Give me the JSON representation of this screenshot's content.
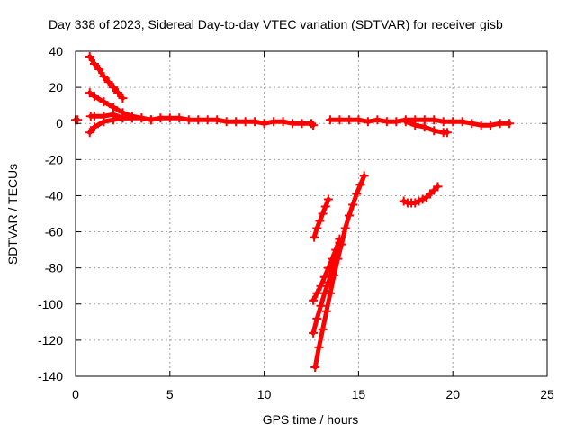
{
  "chart_data": {
    "type": "scatter",
    "title": "Day 338 of 2023, Sidereal Day-to-day VTEC variation (SDTVAR) for receiver gisb",
    "xlabel": "GPS time / hours",
    "ylabel": "SDTVAR / TECUs",
    "xlim": [
      0,
      25
    ],
    "ylim": [
      -140,
      40
    ],
    "xticks": [
      0,
      5,
      10,
      15,
      20,
      25
    ],
    "yticks": [
      -140,
      -120,
      -100,
      -80,
      -60,
      -40,
      -20,
      0,
      20,
      40
    ],
    "grid": true,
    "legend": "none",
    "marker": "plus",
    "color": "#ff0000",
    "series": [
      {
        "x": [
          0.75,
          1.0,
          1.25,
          1.5,
          1.75,
          2.0,
          2.25,
          2.5
        ],
        "y": [
          37,
          33,
          30,
          26,
          23,
          20,
          17,
          14
        ]
      },
      {
        "x": [
          0.75,
          1.0,
          1.5,
          2.0,
          2.5,
          3.0,
          3.5,
          4.0
        ],
        "y": [
          17,
          15,
          12,
          9,
          6,
          4,
          3,
          2
        ]
      },
      {
        "x": [
          0.75,
          1.0,
          1.5,
          2.0,
          2.5,
          3.0
        ],
        "y": [
          -5,
          -2,
          1,
          2,
          3,
          3
        ]
      },
      {
        "x": [
          0.0,
          0.1
        ],
        "y": [
          2,
          2
        ]
      },
      {
        "x": [
          0.8,
          1.0,
          1.5,
          2.0,
          2.5,
          3.0,
          3.5,
          4.0,
          4.5,
          5.0,
          5.5,
          6.0,
          6.5,
          7.0,
          7.5,
          8.0,
          8.5,
          9.0,
          9.5,
          10.0,
          10.5,
          11.0,
          11.5,
          12.0,
          12.5,
          12.6
        ],
        "y": [
          4,
          4,
          4,
          5,
          3,
          3,
          3,
          2,
          3,
          3,
          3,
          2,
          2,
          2,
          2,
          1,
          1,
          1,
          1,
          0,
          1,
          1,
          0,
          0,
          0,
          -1
        ]
      },
      {
        "x": [
          13.5,
          14.0,
          14.5,
          15.0,
          15.5,
          16.0,
          16.5,
          17.0,
          17.5,
          18.0,
          18.5,
          19.0,
          19.5,
          20.0,
          20.5,
          21.0,
          21.5,
          22.0,
          22.5,
          23.0
        ],
        "y": [
          2,
          2,
          2,
          2,
          1,
          2,
          1,
          1,
          2,
          2,
          2,
          2,
          1,
          1,
          1,
          0,
          -1,
          -1,
          0,
          0
        ]
      },
      {
        "x": [
          17.5,
          18.0,
          18.5,
          19.0,
          19.5,
          19.7
        ],
        "y": [
          1,
          -1,
          -2,
          -4,
          -5,
          -5
        ]
      },
      {
        "x": [
          12.65,
          12.8,
          12.95,
          13.1,
          13.25,
          13.4
        ],
        "y": [
          -63,
          -58,
          -54,
          -50,
          -46,
          -42
        ]
      },
      {
        "x": [
          12.6,
          12.8,
          13.0,
          13.2,
          13.4,
          13.6,
          13.8,
          14.0
        ],
        "y": [
          -98,
          -94,
          -90,
          -85,
          -80,
          -75,
          -70,
          -64
        ]
      },
      {
        "x": [
          12.6,
          12.8,
          13.0,
          13.2,
          13.4,
          13.6,
          13.8,
          14.0
        ],
        "y": [
          -116,
          -108,
          -101,
          -94,
          -88,
          -81,
          -74,
          -66
        ]
      },
      {
        "x": [
          12.7,
          12.9,
          13.1,
          13.3,
          13.5,
          13.7,
          13.9,
          14.1,
          14.3,
          14.5,
          14.7,
          14.9,
          15.1,
          15.3
        ],
        "y": [
          -135,
          -124,
          -114,
          -104,
          -94,
          -84,
          -75,
          -67,
          -58,
          -51,
          -45,
          -39,
          -34,
          -29
        ]
      },
      {
        "x": [
          17.4,
          17.6,
          17.8,
          18.0,
          18.2,
          18.4,
          18.6,
          18.8,
          19.0,
          19.2
        ],
        "y": [
          -43,
          -44,
          -44,
          -44,
          -43,
          -42,
          -41,
          -39,
          -37,
          -35
        ]
      }
    ]
  }
}
